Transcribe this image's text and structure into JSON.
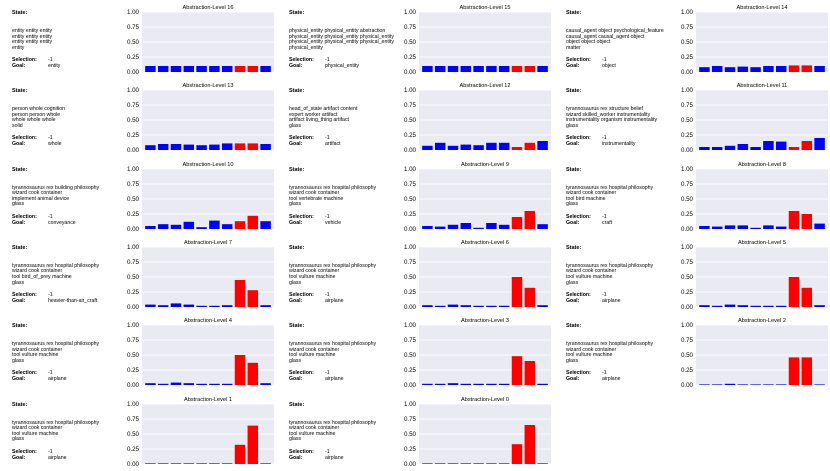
{
  "labels": {
    "state": "State:",
    "selection": "Selection:",
    "goal": "Goal:"
  },
  "colors": {
    "selected": "#ff0000",
    "other": "#0000ff",
    "plot_bg": "#eaeaf2",
    "grid": "#ffffff"
  },
  "chart_data": [
    {
      "type": "bar",
      "title": "Abstraction-Level 16",
      "state": "entity entity entity\nentity entity entity\nentity entity entity\nentity",
      "selection": "-1",
      "goal": "entity",
      "ylim": [
        0,
        1
      ],
      "yticks": [
        "0.00",
        "0.25",
        "0.50",
        "0.75",
        "1.00"
      ],
      "values": [
        0.1,
        0.1,
        0.1,
        0.1,
        0.1,
        0.1,
        0.1,
        0.1,
        0.1,
        0.1
      ],
      "highlight": [
        7,
        8
      ]
    },
    {
      "type": "bar",
      "title": "Abstraction-Level 15",
      "state": "physical_entity physical_entity abstraction\nphysical_entity physical_entity physical_entity\nphysical_entity physical_entity physical_entity\nphysical_entity",
      "selection": "-1",
      "goal": "physical_entity",
      "ylim": [
        0,
        1
      ],
      "yticks": [
        "0.00",
        "0.25",
        "0.50",
        "0.75",
        "1.00"
      ],
      "values": [
        0.1,
        0.1,
        0.1,
        0.1,
        0.1,
        0.1,
        0.1,
        0.1,
        0.1,
        0.1
      ],
      "highlight": [
        7,
        8
      ]
    },
    {
      "type": "bar",
      "title": "Abstraction-Level 14",
      "state": "causal_agent object psychological_feature\ncausal_agent causal_agent object\nobject object object\nmatter",
      "selection": "-1",
      "goal": "object",
      "ylim": [
        0,
        1
      ],
      "yticks": [
        "0.00",
        "0.25",
        "0.50",
        "0.75",
        "1.00"
      ],
      "values": [
        0.08,
        0.1,
        0.08,
        0.09,
        0.08,
        0.1,
        0.1,
        0.11,
        0.11,
        0.1
      ],
      "highlight": [
        7,
        8
      ]
    },
    {
      "type": "bar",
      "title": "Abstraction-Level 13",
      "state": "person whole cognition\nperson person whole\nwhole whole whole\nsolid",
      "selection": "-1",
      "goal": "whole",
      "ylim": [
        0,
        1
      ],
      "yticks": [
        "0.00",
        "0.25",
        "0.50",
        "0.75",
        "1.00"
      ],
      "values": [
        0.08,
        0.1,
        0.1,
        0.09,
        0.08,
        0.09,
        0.11,
        0.11,
        0.11,
        0.1
      ],
      "highlight": [
        7,
        8
      ]
    },
    {
      "type": "bar",
      "title": "Abstraction-Level 12",
      "state": "head_of_state artifact content\nexpert worker artifact\nartifact living_thing artifact\nglass",
      "selection": "-1",
      "goal": "artifact",
      "ylim": [
        0,
        1
      ],
      "yticks": [
        "0.00",
        "0.25",
        "0.50",
        "0.75",
        "1.00"
      ],
      "values": [
        0.07,
        0.12,
        0.07,
        0.09,
        0.08,
        0.12,
        0.12,
        0.05,
        0.12,
        0.15
      ],
      "highlight": [
        7,
        8
      ]
    },
    {
      "type": "bar",
      "title": "Abstraction-Level 11",
      "state": "tyrannosaurus rex structure belief\nwizard skilled_worker instrumentality\ninstrumentality organism instrumentality\nglass",
      "selection": "-1",
      "goal": "instrumentality",
      "ylim": [
        0,
        1
      ],
      "yticks": [
        "0.00",
        "0.25",
        "0.50",
        "0.75",
        "1.00"
      ],
      "values": [
        0.05,
        0.05,
        0.07,
        0.1,
        0.05,
        0.15,
        0.14,
        0.05,
        0.15,
        0.2
      ],
      "highlight": [
        7,
        8
      ]
    },
    {
      "type": "bar",
      "title": "Abstraction-Level 10",
      "state": "tyrannosaurus rex building philosophy\nwizard cook container\nimplement animal device\nglass",
      "selection": "-1",
      "goal": "conveyance",
      "ylim": [
        0,
        1
      ],
      "yticks": [
        "0.00",
        "0.25",
        "0.50",
        "0.75",
        "1.00"
      ],
      "values": [
        0.05,
        0.08,
        0.07,
        0.12,
        0.03,
        0.14,
        0.08,
        0.13,
        0.22,
        0.13
      ],
      "highlight": [
        7,
        8
      ]
    },
    {
      "type": "bar",
      "title": "Abstraction-Level 9",
      "state": "tyrannosaurus rex hospital philosophy\nwizard cook container\ntool vertebrate machine\nglass",
      "selection": "-1",
      "goal": "vehicle",
      "ylim": [
        0,
        1
      ],
      "yticks": [
        "0.00",
        "0.25",
        "0.50",
        "0.75",
        "1.00"
      ],
      "values": [
        0.05,
        0.04,
        0.07,
        0.1,
        0.02,
        0.1,
        0.07,
        0.2,
        0.3,
        0.08
      ],
      "highlight": [
        7,
        8
      ]
    },
    {
      "type": "bar",
      "title": "Abstraction-Level 8",
      "state": "tyrannosaurus rex hospital philosophy\nwizard cook container\ntool bird machine\nglass",
      "selection": "-1",
      "goal": "craft",
      "ylim": [
        0,
        1
      ],
      "yticks": [
        "0.00",
        "0.25",
        "0.50",
        "0.75",
        "1.00"
      ],
      "values": [
        0.05,
        0.04,
        0.06,
        0.06,
        0.02,
        0.06,
        0.04,
        0.3,
        0.25,
        0.09
      ],
      "highlight": [
        7,
        8
      ]
    },
    {
      "type": "bar",
      "title": "Abstraction-Level 7",
      "state": "tyrannosaurus rex hospital philosophy\nwizard cook container\ntool bird_of_prey machine\nglass",
      "selection": "-1",
      "goal": "heavier-than-air_craft",
      "ylim": [
        0,
        1
      ],
      "yticks": [
        "0.00",
        "0.25",
        "0.50",
        "0.75",
        "1.00"
      ],
      "values": [
        0.04,
        0.03,
        0.06,
        0.04,
        0.02,
        0.02,
        0.03,
        0.45,
        0.28,
        0.03
      ],
      "highlight": [
        7,
        8
      ]
    },
    {
      "type": "bar",
      "title": "Abstraction-Level 6",
      "state": "tyrannosaurus rex hospital philosophy\nwizard cook container\ntool vulture machine\nglass",
      "selection": "-1",
      "goal": "airplane",
      "ylim": [
        0,
        1
      ],
      "yticks": [
        "0.00",
        "0.25",
        "0.50",
        "0.75",
        "1.00"
      ],
      "values": [
        0.03,
        0.02,
        0.04,
        0.03,
        0.02,
        0.02,
        0.02,
        0.5,
        0.32,
        0.03
      ],
      "highlight": [
        7,
        8
      ]
    },
    {
      "type": "bar",
      "title": "Abstraction-Level 5",
      "state": "tyrannosaurus rex hospital philosophy\nwizard cook container\ntool vulture machine\nglass",
      "selection": "-1",
      "goal": "airplane",
      "ylim": [
        0,
        1
      ],
      "yticks": [
        "0.00",
        "0.25",
        "0.50",
        "0.75",
        "1.00"
      ],
      "values": [
        0.03,
        0.02,
        0.04,
        0.03,
        0.02,
        0.02,
        0.02,
        0.5,
        0.32,
        0.03
      ],
      "highlight": [
        7,
        8
      ]
    },
    {
      "type": "bar",
      "title": "Abstraction-Level 4",
      "state": "tyrannosaurus rex hospital philosophy\nwizard cook container\ntool vulture machine\nglass",
      "selection": "-1",
      "goal": "airplane",
      "ylim": [
        0,
        1
      ],
      "yticks": [
        "0.00",
        "0.25",
        "0.50",
        "0.75",
        "1.00"
      ],
      "values": [
        0.03,
        0.02,
        0.04,
        0.03,
        0.02,
        0.02,
        0.02,
        0.5,
        0.37,
        0.03
      ],
      "highlight": [
        7,
        8
      ]
    },
    {
      "type": "bar",
      "title": "Abstraction-Level 3",
      "state": "tyrannosaurus rex hospital philosophy\nwizard cook container\ntool vulture machine\nglass",
      "selection": "-1",
      "goal": "airplane",
      "ylim": [
        0,
        1
      ],
      "yticks": [
        "0.00",
        "0.25",
        "0.50",
        "0.75",
        "1.00"
      ],
      "values": [
        0.02,
        0.02,
        0.03,
        0.02,
        0.02,
        0.02,
        0.02,
        0.48,
        0.4,
        0.02
      ],
      "highlight": [
        7,
        8
      ]
    },
    {
      "type": "bar",
      "title": "Abstraction-Level 2",
      "state": "tyrannosaurus rex hospital philosophy\nwizard cook container\ntool vulture machine\nglass",
      "selection": "-1",
      "goal": "airplane",
      "ylim": [
        0,
        1
      ],
      "yticks": [
        "0.00",
        "0.25",
        "0.50",
        "0.75",
        "1.00"
      ],
      "values": [
        0.01,
        0.01,
        0.02,
        0.01,
        0.01,
        0.01,
        0.01,
        0.46,
        0.46,
        0.01
      ],
      "highlight": [
        7,
        8
      ]
    },
    {
      "type": "bar",
      "title": "Abstraction-Level 1",
      "state": "tyrannosaurus rex hospital philosophy\nwizard cook container\ntool vulture machine\nglass",
      "selection": "-1",
      "goal": "airplane",
      "ylim": [
        0,
        1
      ],
      "yticks": [
        "0.00",
        "0.25",
        "0.50",
        "0.75",
        "1.00"
      ],
      "values": [
        0.01,
        0.01,
        0.01,
        0.01,
        0.01,
        0.01,
        0.01,
        0.32,
        0.64,
        0.01
      ],
      "highlight": [
        7,
        8
      ]
    },
    {
      "type": "bar",
      "title": "Abstraction-Level 0",
      "state": "tyrannosaurus rex hospital philosophy\nwizard cook container\ntool vulture machine\nglass",
      "selection": "-1",
      "goal": "airplane",
      "ylim": [
        0,
        1
      ],
      "yticks": [
        "0.00",
        "0.25",
        "0.50",
        "0.75",
        "1.00"
      ],
      "values": [
        0.01,
        0.01,
        0.01,
        0.01,
        0.01,
        0.01,
        0.01,
        0.33,
        0.65,
        0.01
      ],
      "highlight": [
        7,
        8
      ]
    }
  ]
}
